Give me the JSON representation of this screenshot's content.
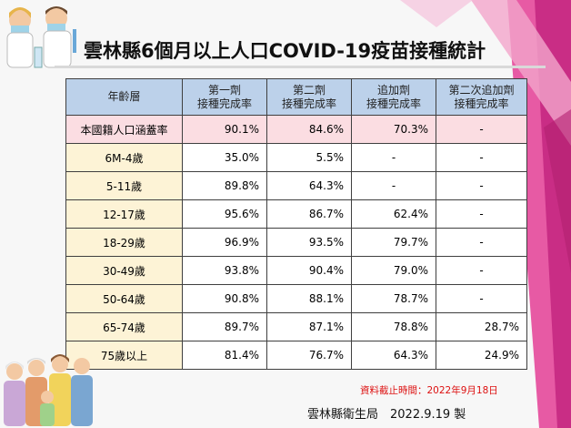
{
  "title": "雲林縣6個月以上人口COVID-19疫苗接種統計",
  "table": {
    "headers": [
      {
        "line1": "年齡層",
        "line2": ""
      },
      {
        "line1": "第一劑",
        "line2": "接種完成率"
      },
      {
        "line1": "第二劑",
        "line2": "接種完成率"
      },
      {
        "line1": "追加劑",
        "line2": "接種完成率"
      },
      {
        "line1": "第二次追加劑",
        "line2": "接種完成率"
      }
    ],
    "rows": [
      {
        "age": "本國籍人口涵蓋率",
        "d1": "90.1%",
        "d2": "84.6%",
        "d3": "70.3%",
        "d4": "-"
      },
      {
        "age": "6M-4歲",
        "d1": "35.0%",
        "d2": "5.5%",
        "d3": "-",
        "d4": "-"
      },
      {
        "age": "5-11歲",
        "d1": "89.8%",
        "d2": "64.3%",
        "d3": "-",
        "d4": "-"
      },
      {
        "age": "12-17歲",
        "d1": "95.6%",
        "d2": "86.7%",
        "d3": "62.4%",
        "d4": "-"
      },
      {
        "age": "18-29歲",
        "d1": "96.9%",
        "d2": "93.5%",
        "d3": "79.7%",
        "d4": "-"
      },
      {
        "age": "30-49歲",
        "d1": "93.8%",
        "d2": "90.4%",
        "d3": "79.0%",
        "d4": "-"
      },
      {
        "age": "50-64歲",
        "d1": "90.8%",
        "d2": "88.1%",
        "d3": "78.7%",
        "d4": "-"
      },
      {
        "age": "65-74歲",
        "d1": "89.7%",
        "d2": "87.1%",
        "d3": "78.8%",
        "d4": "28.7%"
      },
      {
        "age": "75歲以上",
        "d1": "81.4%",
        "d2": "76.7%",
        "d3": "64.3%",
        "d4": "24.9%"
      }
    ]
  },
  "note": "資料截止時間：2022年9月18日",
  "footer": "雲林縣衛生局　2022.9.19  製",
  "colors": {
    "header_bg": "#bcd1ea",
    "age_bg": "#fdf3d6",
    "highlight_row": "#fbdde2",
    "note": "#dd1111",
    "accent_pink": "#e0489a"
  }
}
